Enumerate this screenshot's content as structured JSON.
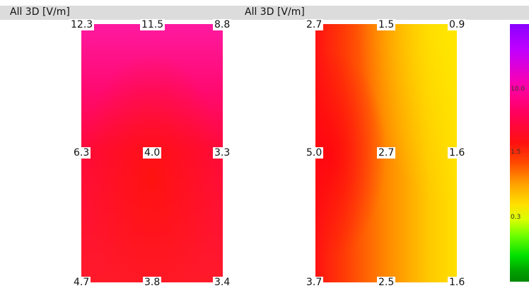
{
  "panels": [
    {
      "title": "All 3D [V/m]",
      "grid": [
        [
          "12.3",
          "11.5",
          "8.8"
        ],
        [
          "6.3",
          "4.0",
          "3.3"
        ],
        [
          "4.7",
          "3.8",
          "3.4"
        ]
      ]
    },
    {
      "title": "All 3D [V/m]",
      "grid": [
        [
          "2.7",
          "1.5",
          "0.9"
        ],
        [
          "5.0",
          "2.7",
          "1.6"
        ],
        [
          "3.7",
          "2.5",
          "1.6"
        ]
      ]
    }
  ],
  "colorbar": {
    "ticks": [
      "10.0",
      "1.5",
      "0.3"
    ],
    "colors": [
      "#8a00ff",
      "#ff00aa",
      "#ff1010",
      "#ffa000",
      "#ffe000",
      "#70ff00",
      "#008800"
    ]
  }
}
